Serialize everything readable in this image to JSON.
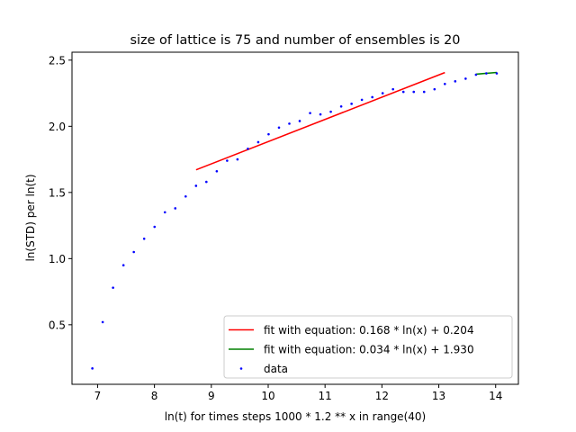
{
  "chart_data": {
    "type": "scatter",
    "title": "size of lattice is 75 and number of ensembles is 20",
    "xlabel": "ln(t) for times steps 1000 * 1.2 ** x in range(40)",
    "ylabel": "ln(STD) per ln(t)",
    "xlim": [
      6.55,
      14.4
    ],
    "ylim": [
      0.05,
      2.56
    ],
    "xticks": [
      7,
      8,
      9,
      10,
      11,
      12,
      13,
      14
    ],
    "xtick_labels": [
      "7",
      "8",
      "9",
      "10",
      "11",
      "12",
      "13",
      "14"
    ],
    "yticks": [
      0.5,
      1.0,
      1.5,
      2.0,
      2.5
    ],
    "ytick_labels": [
      "0.5",
      "1.0",
      "1.5",
      "2.0",
      "2.5"
    ],
    "grid": false,
    "legend_position": "lower-right",
    "series": [
      {
        "name": "fit with equation: 0.168 * ln(x) + 0.204",
        "kind": "line",
        "color": "#ff0000",
        "x": [
          8.732,
          13.107
        ],
        "y": [
          1.671,
          2.406
        ]
      },
      {
        "name": "fit with equation: 0.034 * ln(x) + 1.930",
        "kind": "line",
        "color": "#008000",
        "x": [
          13.654,
          14.019
        ],
        "y": [
          2.394,
          2.407
        ]
      },
      {
        "name": "data",
        "kind": "scatter",
        "color": "#0000ff",
        "x": [
          6.908,
          7.09,
          7.272,
          7.455,
          7.637,
          7.819,
          8.002,
          8.184,
          8.366,
          8.549,
          8.731,
          8.913,
          9.096,
          9.278,
          9.46,
          9.643,
          9.825,
          10.007,
          10.19,
          10.372,
          10.554,
          10.737,
          10.919,
          11.101,
          11.284,
          11.466,
          11.648,
          11.831,
          12.013,
          12.195,
          12.378,
          12.56,
          12.742,
          12.925,
          13.107,
          13.289,
          13.472,
          13.654,
          13.836,
          14.019
        ],
        "y": [
          0.17,
          0.52,
          0.78,
          0.95,
          1.05,
          1.15,
          1.24,
          1.35,
          1.38,
          1.47,
          1.55,
          1.58,
          1.66,
          1.74,
          1.75,
          1.83,
          1.88,
          1.94,
          1.99,
          2.02,
          2.04,
          2.1,
          2.09,
          2.11,
          2.15,
          2.17,
          2.2,
          2.22,
          2.25,
          2.28,
          2.26,
          2.26,
          2.26,
          2.28,
          2.32,
          2.34,
          2.36,
          2.39,
          2.4,
          2.4
        ]
      }
    ]
  }
}
